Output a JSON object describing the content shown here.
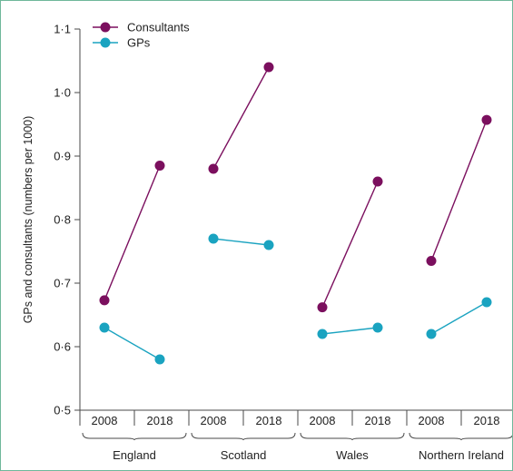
{
  "chart_data": {
    "type": "line",
    "ylabel": "GPs and consultants (numbers per 1000)",
    "ylim": [
      0.5,
      1.1
    ],
    "yticks": [
      0.5,
      0.6,
      0.7,
      0.8,
      0.9,
      1.0,
      1.1
    ],
    "ytick_labels": [
      "0·5",
      "0·6",
      "0·7",
      "0·8",
      "0·9",
      "1·0",
      "1·1"
    ],
    "years": [
      "2008",
      "2018"
    ],
    "groups": [
      {
        "name": "England",
        "consultants": [
          0.673,
          0.885
        ],
        "gps": [
          0.63,
          0.58
        ]
      },
      {
        "name": "Scotland",
        "consultants": [
          0.88,
          1.04
        ],
        "gps": [
          0.77,
          0.76
        ]
      },
      {
        "name": "Wales",
        "consultants": [
          0.662,
          0.86
        ],
        "gps": [
          0.62,
          0.63
        ]
      },
      {
        "name": "Northern Ireland",
        "consultants": [
          0.735,
          0.957
        ],
        "gps": [
          0.62,
          0.67
        ]
      }
    ],
    "series": [
      {
        "key": "consultants",
        "name": "Consultants",
        "color": "#7b0f5e"
      },
      {
        "key": "gps",
        "name": "GPs",
        "color": "#1aa3c0"
      }
    ],
    "legend": "top-left",
    "grid": false
  }
}
